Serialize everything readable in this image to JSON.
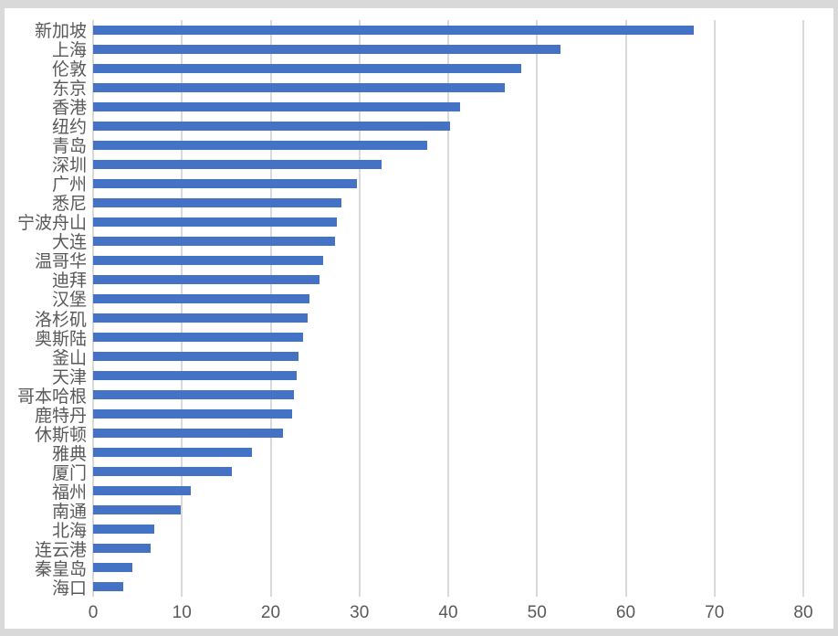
{
  "chart_data": {
    "type": "bar",
    "orientation": "horizontal",
    "title": "",
    "xlabel": "",
    "ylabel": "",
    "categories": [
      "新加坡",
      "上海",
      "伦敦",
      "东京",
      "香港",
      "纽约",
      "青岛",
      "深圳",
      "广州",
      "悉尼",
      "宁波舟山",
      "大连",
      "温哥华",
      "迪拜",
      "汉堡",
      "洛杉矶",
      "奥斯陆",
      "釜山",
      "天津",
      "哥本哈根",
      "鹿特丹",
      "休斯顿",
      "雅典",
      "厦门",
      "福州",
      "南通",
      "北海",
      "连云港",
      "秦皇岛",
      "海口"
    ],
    "values": [
      67.7,
      52.6,
      48.2,
      46.4,
      41.3,
      40.2,
      37.6,
      32.5,
      29.7,
      28.0,
      27.5,
      27.2,
      25.9,
      25.5,
      24.4,
      24.2,
      23.6,
      23.1,
      22.9,
      22.6,
      22.4,
      21.4,
      17.9,
      15.6,
      11.0,
      9.9,
      6.9,
      6.5,
      4.4,
      3.4
    ],
    "xlim": [
      0,
      80
    ],
    "x_ticks": [
      0,
      10,
      20,
      30,
      40,
      50,
      60,
      70,
      80
    ],
    "grid": "vertical",
    "legend": "none",
    "bar_color": "#4472c4",
    "gridline_color": "#d9d9d9",
    "label_color": "#595959",
    "background_color": "#ffffff"
  }
}
